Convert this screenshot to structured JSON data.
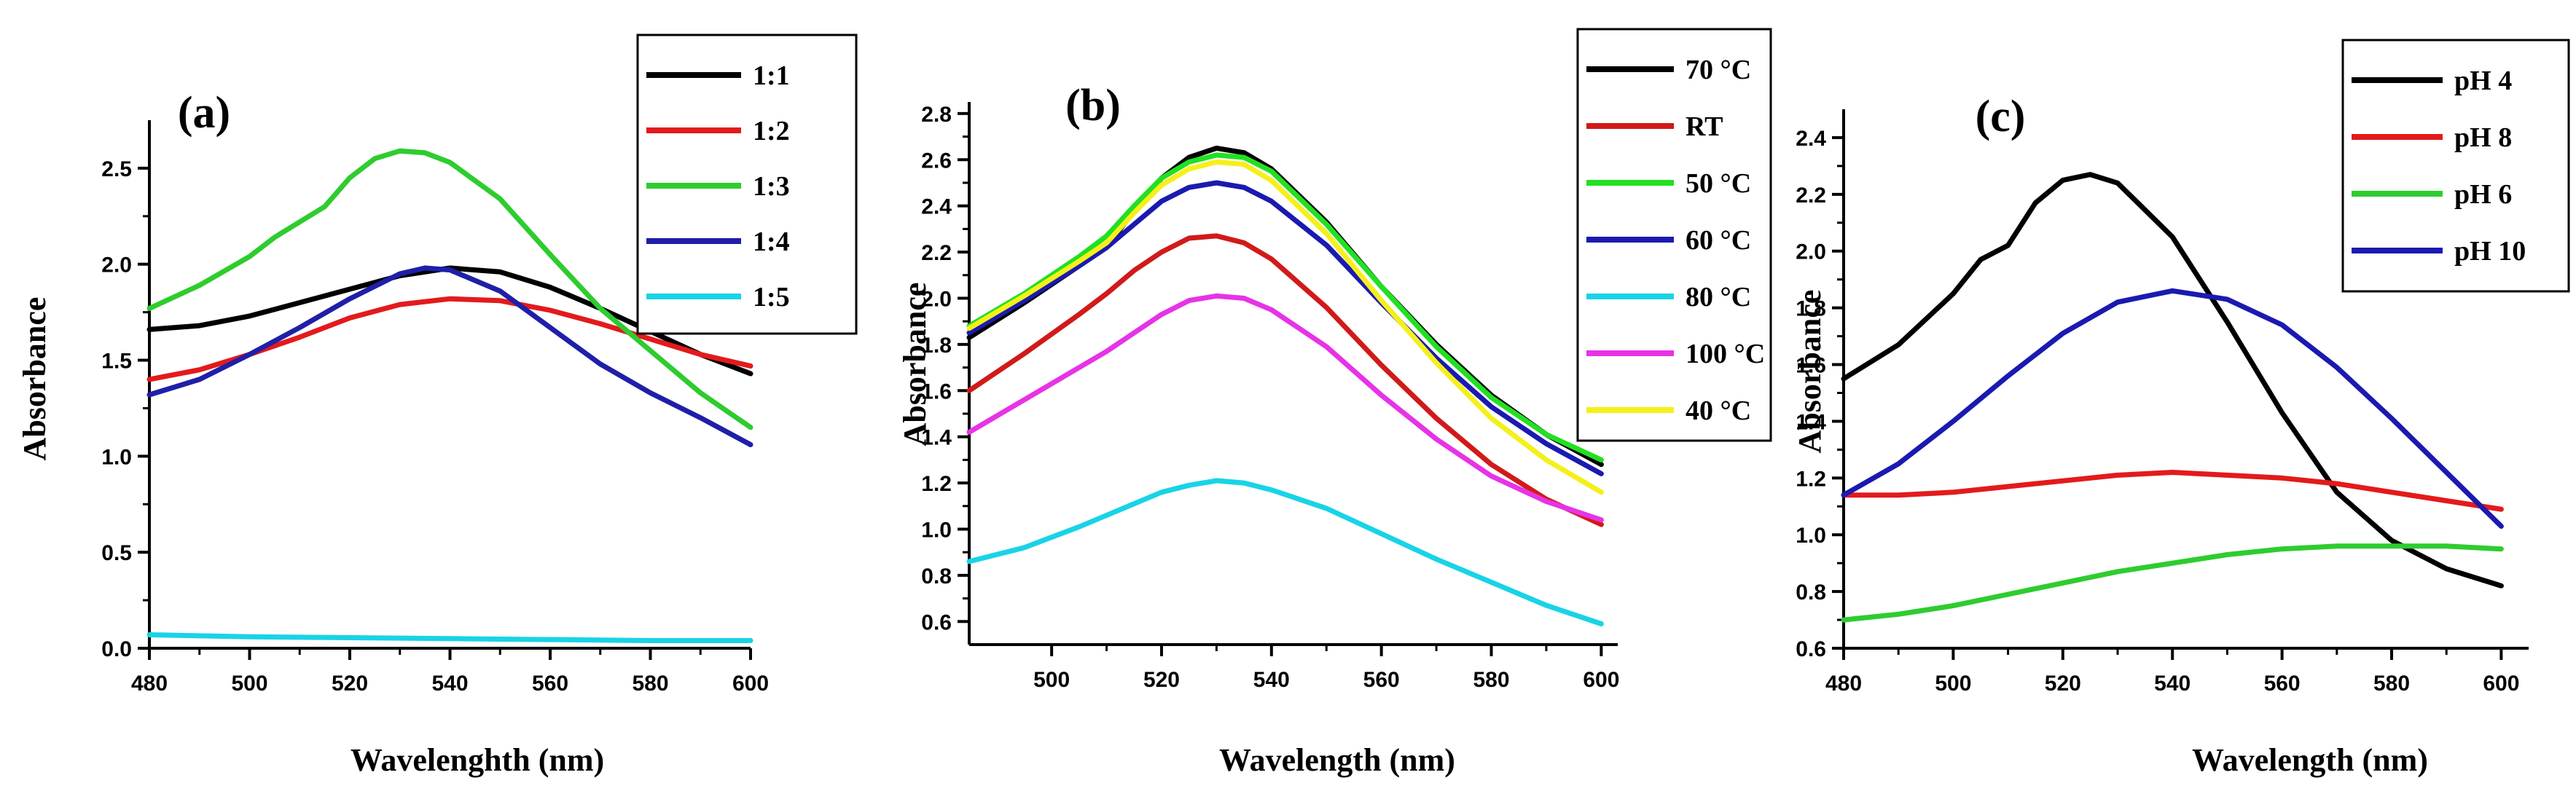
{
  "chart_data": [
    {
      "type": "line",
      "panel_label": "(a)",
      "xlabel": "Wavelenghth (nm)",
      "ylabel": "Absorbance",
      "xlim": [
        480,
        600
      ],
      "ylim": [
        0,
        2.75
      ],
      "xticks": [
        480,
        500,
        520,
        540,
        560,
        580,
        600
      ],
      "yticks": [
        0.0,
        0.5,
        1.0,
        1.5,
        2.0,
        2.5
      ],
      "ytick_labels": [
        "0.0",
        "0.5",
        "1.0",
        "1.5",
        "2.0",
        "2.5"
      ],
      "legend_position": "top-right",
      "series": [
        {
          "name": "1:1",
          "color": "#000000",
          "x": [
            480,
            490,
            500,
            510,
            520,
            530,
            540,
            550,
            560,
            570,
            580,
            590,
            600
          ],
          "y": [
            1.66,
            1.68,
            1.73,
            1.8,
            1.87,
            1.94,
            1.98,
            1.96,
            1.88,
            1.77,
            1.65,
            1.53,
            1.43
          ]
        },
        {
          "name": "1:2",
          "color": "#e31a1c",
          "x": [
            480,
            490,
            500,
            510,
            520,
            530,
            540,
            550,
            560,
            570,
            580,
            590,
            600
          ],
          "y": [
            1.4,
            1.45,
            1.53,
            1.62,
            1.72,
            1.79,
            1.82,
            1.81,
            1.76,
            1.69,
            1.61,
            1.53,
            1.47
          ]
        },
        {
          "name": "1:3",
          "color": "#2ecc2e",
          "x": [
            480,
            490,
            500,
            505,
            510,
            515,
            520,
            525,
            530,
            535,
            540,
            550,
            560,
            570,
            580,
            590,
            600
          ],
          "y": [
            1.77,
            1.89,
            2.04,
            2.14,
            2.22,
            2.3,
            2.45,
            2.55,
            2.59,
            2.58,
            2.53,
            2.34,
            2.05,
            1.77,
            1.55,
            1.33,
            1.15
          ]
        },
        {
          "name": "1:4",
          "color": "#1f1fa8",
          "x": [
            480,
            490,
            500,
            510,
            520,
            530,
            535,
            540,
            550,
            560,
            570,
            580,
            590,
            600
          ],
          "y": [
            1.32,
            1.4,
            1.53,
            1.67,
            1.82,
            1.95,
            1.98,
            1.97,
            1.86,
            1.67,
            1.48,
            1.33,
            1.2,
            1.06
          ]
        },
        {
          "name": "1:5",
          "color": "#19d3e6",
          "x": [
            480,
            500,
            520,
            540,
            560,
            580,
            600
          ],
          "y": [
            0.07,
            0.06,
            0.055,
            0.05,
            0.045,
            0.04,
            0.04
          ]
        }
      ]
    },
    {
      "type": "line",
      "panel_label": "(b)",
      "xlabel": "Wavelength (nm)",
      "ylabel": "Absorbance",
      "xlim": [
        485,
        603
      ],
      "ylim": [
        0.5,
        2.85
      ],
      "xticks": [
        500,
        520,
        540,
        560,
        580,
        600
      ],
      "yticks": [
        0.6,
        0.8,
        1.0,
        1.2,
        1.4,
        1.6,
        1.8,
        2.0,
        2.2,
        2.4,
        2.6,
        2.8
      ],
      "ytick_labels": [
        "0.6",
        "0.8",
        "1.0",
        "1.2",
        "1.4",
        "1.6",
        "1.8",
        "2.0",
        "2.2",
        "2.4",
        "2.6",
        "2.8"
      ],
      "legend_position": "top-right",
      "series": [
        {
          "name": "70 °C",
          "color": "#000000",
          "x": [
            485,
            495,
            505,
            510,
            515,
            520,
            525,
            530,
            535,
            540,
            550,
            560,
            570,
            580,
            590,
            600
          ],
          "y": [
            1.83,
            1.98,
            2.14,
            2.22,
            2.38,
            2.52,
            2.61,
            2.65,
            2.63,
            2.56,
            2.33,
            2.05,
            1.8,
            1.58,
            1.41,
            1.28
          ]
        },
        {
          "name": "RT",
          "color": "#d11a1a",
          "x": [
            485,
            495,
            505,
            510,
            515,
            520,
            525,
            530,
            535,
            540,
            550,
            560,
            570,
            580,
            590,
            600
          ],
          "y": [
            1.6,
            1.76,
            1.93,
            2.02,
            2.12,
            2.2,
            2.26,
            2.27,
            2.24,
            2.17,
            1.96,
            1.71,
            1.48,
            1.28,
            1.13,
            1.02
          ]
        },
        {
          "name": "50 °C",
          "color": "#22e022",
          "x": [
            485,
            495,
            505,
            510,
            515,
            520,
            525,
            530,
            535,
            540,
            550,
            560,
            570,
            580,
            590,
            600
          ],
          "y": [
            1.88,
            2.02,
            2.18,
            2.27,
            2.4,
            2.52,
            2.59,
            2.62,
            2.61,
            2.55,
            2.32,
            2.05,
            1.79,
            1.57,
            1.41,
            1.3
          ]
        },
        {
          "name": "60 °C",
          "color": "#1a1ab0",
          "x": [
            485,
            495,
            505,
            510,
            515,
            520,
            525,
            530,
            535,
            540,
            550,
            560,
            570,
            580,
            590,
            600
          ],
          "y": [
            1.85,
            1.99,
            2.14,
            2.22,
            2.32,
            2.42,
            2.48,
            2.5,
            2.48,
            2.42,
            2.23,
            1.98,
            1.74,
            1.53,
            1.37,
            1.24
          ]
        },
        {
          "name": "80 °C",
          "color": "#19d3e6",
          "x": [
            485,
            495,
            505,
            515,
            520,
            525,
            530,
            535,
            540,
            550,
            560,
            570,
            580,
            590,
            600
          ],
          "y": [
            0.86,
            0.92,
            1.01,
            1.11,
            1.16,
            1.19,
            1.21,
            1.2,
            1.17,
            1.09,
            0.98,
            0.87,
            0.77,
            0.67,
            0.59
          ]
        },
        {
          "name": "100 °C",
          "color": "#e633e6",
          "x": [
            485,
            495,
            505,
            510,
            515,
            520,
            525,
            530,
            535,
            540,
            550,
            560,
            570,
            580,
            590,
            600
          ],
          "y": [
            1.42,
            1.56,
            1.7,
            1.77,
            1.85,
            1.93,
            1.99,
            2.01,
            2.0,
            1.95,
            1.79,
            1.58,
            1.39,
            1.23,
            1.12,
            1.04
          ]
        },
        {
          "name": "40 °C",
          "color": "#f5f01a",
          "x": [
            485,
            495,
            505,
            510,
            515,
            520,
            525,
            530,
            535,
            540,
            550,
            560,
            570,
            580,
            590,
            600
          ],
          "y": [
            1.87,
            2.01,
            2.16,
            2.24,
            2.37,
            2.49,
            2.56,
            2.59,
            2.58,
            2.51,
            2.28,
            1.99,
            1.72,
            1.48,
            1.3,
            1.16
          ]
        }
      ]
    },
    {
      "type": "line",
      "panel_label": "(c)",
      "xlabel": "Wavelength (nm)",
      "ylabel": "Absorbance",
      "xlim": [
        480,
        605
      ],
      "ylim": [
        0.6,
        2.5
      ],
      "xticks": [
        480,
        500,
        520,
        540,
        560,
        580,
        600
      ],
      "yticks": [
        0.6,
        0.8,
        1.0,
        1.2,
        1.4,
        1.6,
        1.8,
        2.0,
        2.2,
        2.4
      ],
      "ytick_labels": [
        "0.6",
        "0.8",
        "1.0",
        "1.2",
        "1.4",
        "1.6",
        "1.8",
        "2.0",
        "2.2",
        "2.4"
      ],
      "legend_position": "top-right",
      "series": [
        {
          "name": "pH 4",
          "color": "#000000",
          "x": [
            480,
            490,
            500,
            505,
            510,
            515,
            520,
            525,
            530,
            540,
            550,
            560,
            570,
            580,
            590,
            600
          ],
          "y": [
            1.55,
            1.67,
            1.85,
            1.97,
            2.02,
            2.17,
            2.25,
            2.27,
            2.24,
            2.05,
            1.75,
            1.43,
            1.15,
            0.98,
            0.88,
            0.82
          ]
        },
        {
          "name": "pH 8",
          "color": "#e31a1c",
          "x": [
            480,
            490,
            500,
            510,
            520,
            530,
            540,
            550,
            560,
            570,
            580,
            590,
            600
          ],
          "y": [
            1.14,
            1.14,
            1.15,
            1.17,
            1.19,
            1.21,
            1.22,
            1.21,
            1.2,
            1.18,
            1.15,
            1.12,
            1.09
          ]
        },
        {
          "name": "pH 6",
          "color": "#2ecc2e",
          "x": [
            480,
            490,
            500,
            510,
            520,
            530,
            540,
            550,
            560,
            570,
            580,
            590,
            600
          ],
          "y": [
            0.7,
            0.72,
            0.75,
            0.79,
            0.83,
            0.87,
            0.9,
            0.93,
            0.95,
            0.96,
            0.96,
            0.96,
            0.95
          ]
        },
        {
          "name": "pH 10",
          "color": "#1a1ab0",
          "x": [
            480,
            490,
            500,
            510,
            520,
            530,
            540,
            550,
            560,
            570,
            580,
            590,
            600
          ],
          "y": [
            1.14,
            1.25,
            1.4,
            1.56,
            1.71,
            1.82,
            1.86,
            1.83,
            1.74,
            1.59,
            1.41,
            1.22,
            1.03
          ]
        }
      ]
    }
  ]
}
